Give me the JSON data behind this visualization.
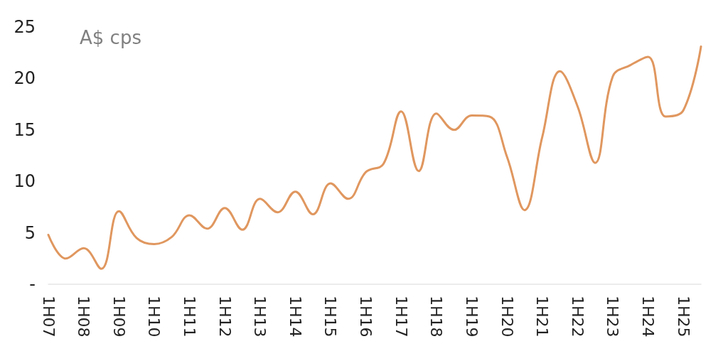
{
  "chart_data": {
    "type": "line",
    "ylabel": "A$ cps",
    "categories": [
      "1H07",
      null,
      "1H08",
      null,
      "1H09",
      null,
      "1H10",
      null,
      "1H11",
      null,
      "1H12",
      null,
      "1H13",
      null,
      "1H14",
      null,
      "1H15",
      null,
      "1H16",
      null,
      "1H17",
      null,
      "1H18",
      null,
      "1H19",
      null,
      "1H20",
      null,
      "1H21",
      null,
      "1H22",
      null,
      "1H23",
      null,
      "1H24",
      null,
      "1H25",
      null
    ],
    "series": [
      {
        "color": "#e0975f",
        "values": [
          4.8,
          2.5,
          3.5,
          1.5,
          7.1,
          4.5,
          3.9,
          4.6,
          6.7,
          5.4,
          7.4,
          5.3,
          8.3,
          7.0,
          9.0,
          6.8,
          9.8,
          8.3,
          10.9,
          11.7,
          16.8,
          11.0,
          16.6,
          15.0,
          16.4,
          16.3,
          12.4,
          7.2,
          14.3,
          20.7,
          17.3,
          11.8,
          20.2,
          21.3,
          22.1,
          16.3,
          16.9,
          23.1
        ]
      }
    ],
    "ylim": [
      0,
      25
    ],
    "yticks": [
      {
        "value": 0,
        "label": "-"
      },
      5,
      10,
      15,
      20,
      25
    ],
    "marker": "none",
    "line_style": "solid"
  }
}
